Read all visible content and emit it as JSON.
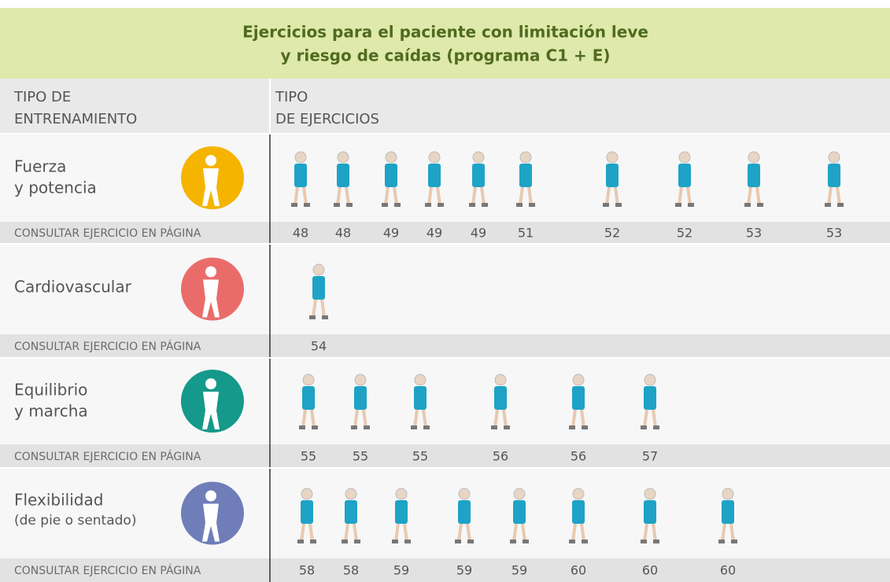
{
  "title": [
    "Ejercicios para el paciente con limitación leve",
    "y riesgo de caídas (programa C1 + E)"
  ],
  "header": {
    "training_type": [
      "TIPO DE",
      "ENTRENAMIENTO"
    ],
    "exercise_type": [
      "TIPO",
      "DE EJERCICIOS"
    ]
  },
  "sections": [
    {
      "name": [
        "Fuerza",
        "y potencia"
      ],
      "page_label": "CONSULTAR EJERCICIO EN PÁGINA",
      "pages": [
        "48",
        "48",
        "49",
        "49",
        "49",
        "51",
        "52",
        "52",
        "53",
        "53"
      ]
    },
    {
      "name": [
        "Cardiovascular"
      ],
      "page_label": "CONSULTAR EJERCICIO EN PÁGINA",
      "pages": [
        "54"
      ]
    },
    {
      "name": [
        "Equilibrio",
        "y marcha"
      ],
      "page_label": "CONSULTAR EJERCICIO EN PÁGINA",
      "pages": [
        "55",
        "55",
        "55",
        "56",
        "56",
        "57"
      ]
    },
    {
      "name": [
        "Flexibilidad",
        "(de pie o sentado)"
      ],
      "page_label": "CONSULTAR EJERCICIO EN PÁGINA",
      "pages": [
        "58",
        "58",
        "59",
        "59",
        "59",
        "60",
        "60",
        "60"
      ]
    }
  ]
}
